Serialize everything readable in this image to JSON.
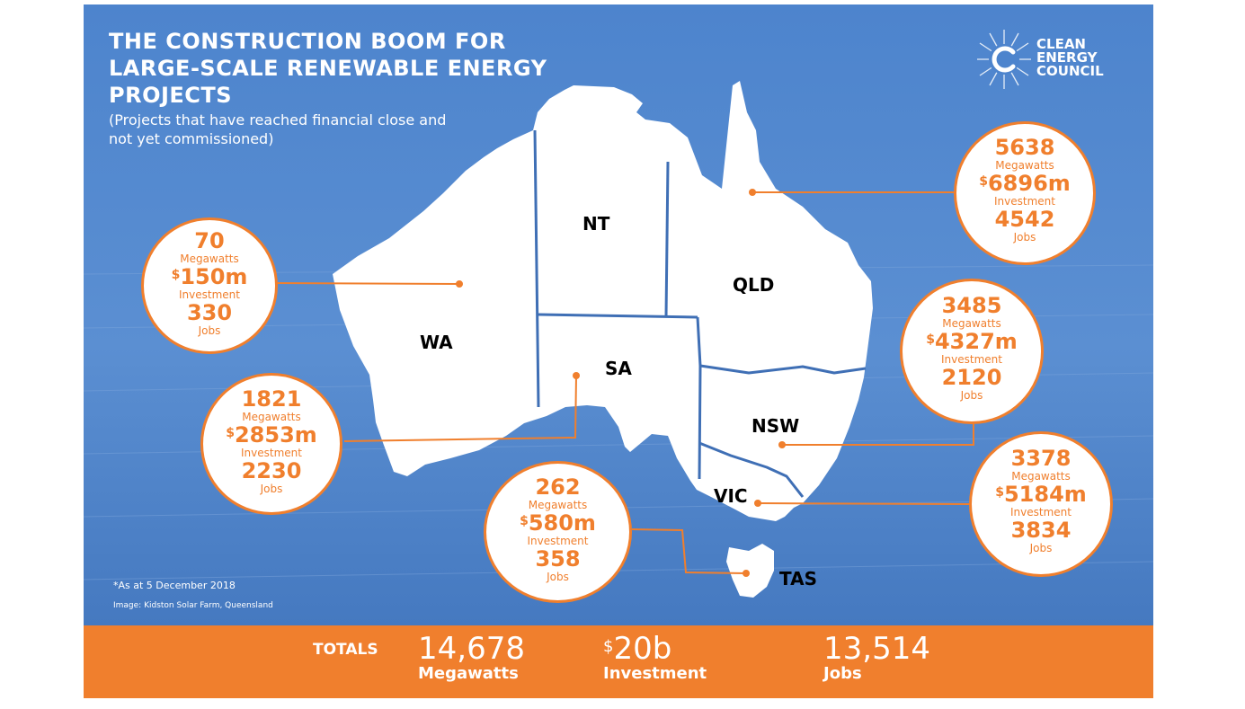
{
  "title": "THE CONSTRUCTION BOOM FOR LARGE-SCALE RENEWABLE ENERGY PROJECTS",
  "subtitle": "(Projects that have reached financial close and not yet commissioned)",
  "logo": {
    "line1": "CLEAN",
    "line2": "ENERGY",
    "line3": "COUNCIL"
  },
  "regions": {
    "wa": "WA",
    "nt": "NT",
    "sa": "SA",
    "qld": "QLD",
    "nsw": "NSW",
    "vic": "VIC",
    "tas": "TAS"
  },
  "labels": {
    "megawatts": "Megawatts",
    "investment": "Investment",
    "jobs": "Jobs",
    "currency": "$"
  },
  "states": {
    "wa_north": {
      "megawatts": "70",
      "investment": "150m",
      "jobs": "330"
    },
    "wa_south": {
      "megawatts": "1821",
      "investment": "2853m",
      "jobs": "2230"
    },
    "sa": {
      "megawatts": "262",
      "investment": "580m",
      "jobs": "358"
    },
    "qld": {
      "megawatts": "5638",
      "investment": "6896m",
      "jobs": "4542"
    },
    "nsw": {
      "megawatts": "3485",
      "investment": "4327m",
      "jobs": "2120"
    },
    "vic": {
      "megawatts": "3378",
      "investment": "5184m",
      "jobs": "3834"
    }
  },
  "notes": {
    "date": "*As at 5 December 2018",
    "image": "Image: Kidston Solar Farm, Queensland"
  },
  "totals": {
    "label": "TOTALS",
    "megawatts_value": "14,678",
    "megawatts_label": "Megawatts",
    "currency": "$",
    "investment_value": "20b",
    "investment_label": "Investment",
    "jobs_value": "13,514",
    "jobs_label": "Jobs"
  },
  "colors": {
    "accent": "#f07f2d",
    "background": "#4f86cf",
    "map": "#ffffff",
    "border": "#3f6fb5"
  }
}
